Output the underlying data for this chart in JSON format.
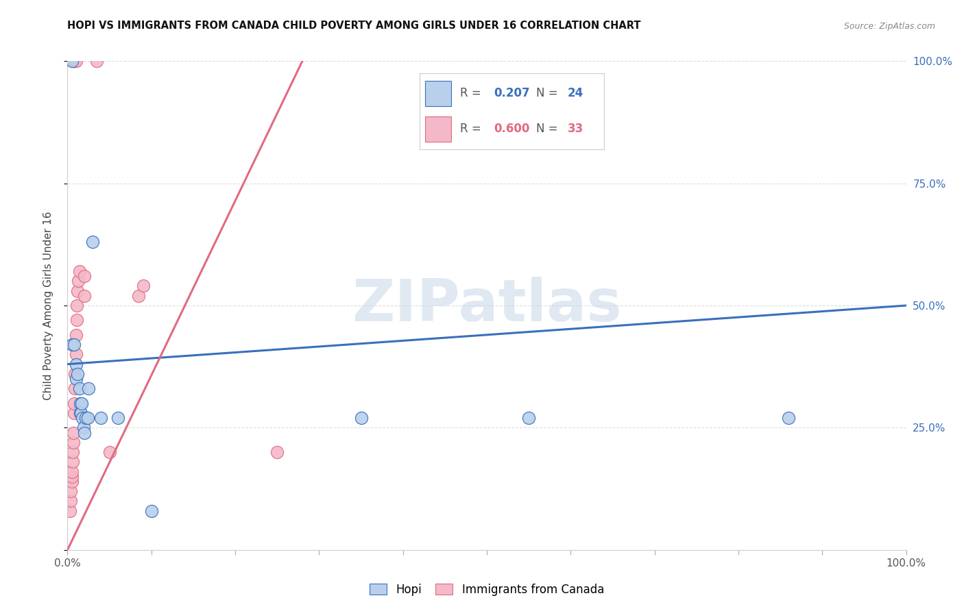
{
  "title": "HOPI VS IMMIGRANTS FROM CANADA CHILD POVERTY AMONG GIRLS UNDER 16 CORRELATION CHART",
  "source": "Source: ZipAtlas.com",
  "ylabel": "Child Poverty Among Girls Under 16",
  "xlim": [
    0,
    1.0
  ],
  "ylim": [
    0,
    1.0
  ],
  "hopi_color": "#b8d0eb",
  "canada_color": "#f4b8c8",
  "hopi_line_color": "#3a6fbd",
  "canada_line_color": "#e06b80",
  "hopi_R": 0.207,
  "hopi_N": 24,
  "canada_R": 0.6,
  "canada_N": 33,
  "hopi_points": [
    [
      0.005,
      1.0
    ],
    [
      0.005,
      0.42
    ],
    [
      0.008,
      0.42
    ],
    [
      0.01,
      0.38
    ],
    [
      0.01,
      0.35
    ],
    [
      0.012,
      0.36
    ],
    [
      0.014,
      0.33
    ],
    [
      0.015,
      0.3
    ],
    [
      0.015,
      0.28
    ],
    [
      0.016,
      0.28
    ],
    [
      0.017,
      0.3
    ],
    [
      0.018,
      0.27
    ],
    [
      0.019,
      0.25
    ],
    [
      0.02,
      0.24
    ],
    [
      0.022,
      0.27
    ],
    [
      0.024,
      0.27
    ],
    [
      0.025,
      0.33
    ],
    [
      0.03,
      0.63
    ],
    [
      0.04,
      0.27
    ],
    [
      0.06,
      0.27
    ],
    [
      0.1,
      0.08
    ],
    [
      0.35,
      0.27
    ],
    [
      0.55,
      0.27
    ],
    [
      0.86,
      0.27
    ]
  ],
  "canada_points": [
    [
      0.003,
      0.08
    ],
    [
      0.004,
      0.1
    ],
    [
      0.004,
      0.12
    ],
    [
      0.005,
      0.14
    ],
    [
      0.005,
      0.15
    ],
    [
      0.005,
      0.16
    ],
    [
      0.006,
      0.18
    ],
    [
      0.006,
      0.2
    ],
    [
      0.007,
      0.22
    ],
    [
      0.007,
      0.24
    ],
    [
      0.008,
      0.28
    ],
    [
      0.008,
      0.3
    ],
    [
      0.009,
      0.33
    ],
    [
      0.009,
      0.36
    ],
    [
      0.01,
      0.4
    ],
    [
      0.01,
      0.44
    ],
    [
      0.011,
      0.47
    ],
    [
      0.011,
      0.5
    ],
    [
      0.012,
      0.53
    ],
    [
      0.013,
      0.55
    ],
    [
      0.014,
      0.57
    ],
    [
      0.006,
      1.0
    ],
    [
      0.007,
      1.0
    ],
    [
      0.008,
      1.0
    ],
    [
      0.009,
      1.0
    ],
    [
      0.01,
      1.0
    ],
    [
      0.035,
      1.0
    ],
    [
      0.02,
      0.52
    ],
    [
      0.02,
      0.56
    ],
    [
      0.05,
      0.2
    ],
    [
      0.085,
      0.52
    ],
    [
      0.09,
      0.54
    ],
    [
      0.25,
      0.2
    ]
  ],
  "hopi_line_y0": 0.38,
  "hopi_line_y1": 0.5,
  "canada_line_x0": 0.0,
  "canada_line_y0": 0.0,
  "canada_line_x1": 0.28,
  "canada_line_y1": 1.0,
  "background_color": "#ffffff",
  "grid_color": "#dddddd",
  "watermark_text": "ZIPatlas",
  "watermark_color": "#c8d8e8"
}
